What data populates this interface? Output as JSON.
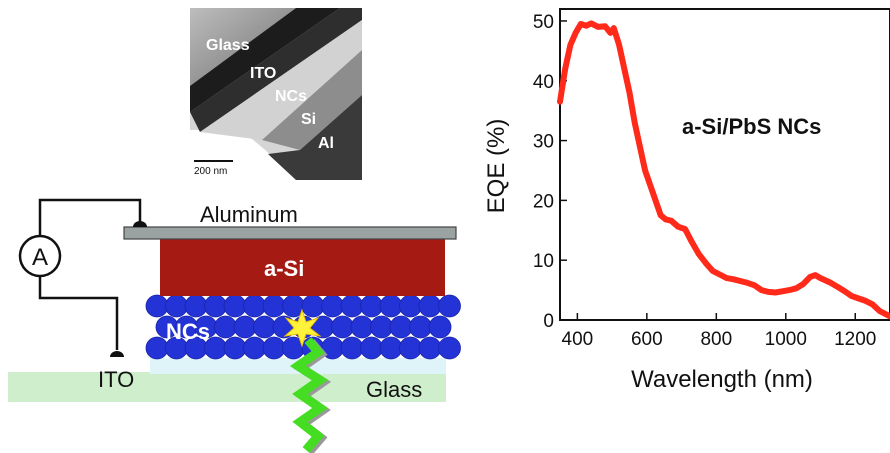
{
  "sem_image": {
    "labels": [
      "Glass",
      "ITO",
      "NCs",
      "Si",
      "Al"
    ],
    "scale_bar": "200 nm"
  },
  "device": {
    "aluminum": "Aluminum",
    "asi": "a-Si",
    "ncs": "NCs",
    "ito": "ITO",
    "glass": "Glass",
    "meter": "A"
  },
  "colors": {
    "asi": "#a51a12",
    "nc": "#2433d6",
    "glass": "#cfeecb",
    "aluminum": "#9aa2a2",
    "curve": "#ff2a1a",
    "photon": "#44dd22",
    "spark": "#fff23a"
  },
  "chart_data": {
    "type": "line",
    "xlabel": "Wavelength (nm)",
    "ylabel": "EQE (%)",
    "annotation": "a-Si/PbS NCs",
    "xlim": [
      350,
      1300
    ],
    "ylim": [
      0,
      52
    ],
    "xticks": [
      400,
      600,
      800,
      1000,
      1200
    ],
    "yticks": [
      0,
      10,
      20,
      30,
      40,
      50
    ],
    "grid": false,
    "series": [
      {
        "x": [
          350,
          365,
          380,
          395,
          410,
          425,
          440,
          460,
          480,
          495,
          505,
          520,
          535,
          550,
          565,
          580,
          595,
          610,
          625,
          640,
          655,
          670,
          690,
          710,
          730,
          750,
          770,
          790,
          810,
          830,
          850,
          870,
          890,
          910,
          930,
          950,
          970,
          990,
          1010,
          1030,
          1050,
          1070,
          1085,
          1100,
          1115,
          1130,
          1150,
          1170,
          1190,
          1210,
          1230,
          1250,
          1270,
          1300
        ],
        "y": [
          36.5,
          42,
          46,
          48,
          49.5,
          49.2,
          49.6,
          49,
          49.1,
          48,
          48.8,
          46,
          42,
          38,
          33,
          29,
          25,
          22.5,
          20,
          17.5,
          16.8,
          16.6,
          15.6,
          15.2,
          13,
          11,
          9.5,
          8.2,
          7.6,
          7,
          6.8,
          6.5,
          6.2,
          5.8,
          5,
          4.7,
          4.6,
          4.8,
          5,
          5.3,
          6,
          7.2,
          7.5,
          7,
          6.6,
          6.2,
          5.5,
          4.8,
          4,
          3.6,
          3.2,
          2.6,
          1.5,
          0.6
        ]
      }
    ]
  }
}
